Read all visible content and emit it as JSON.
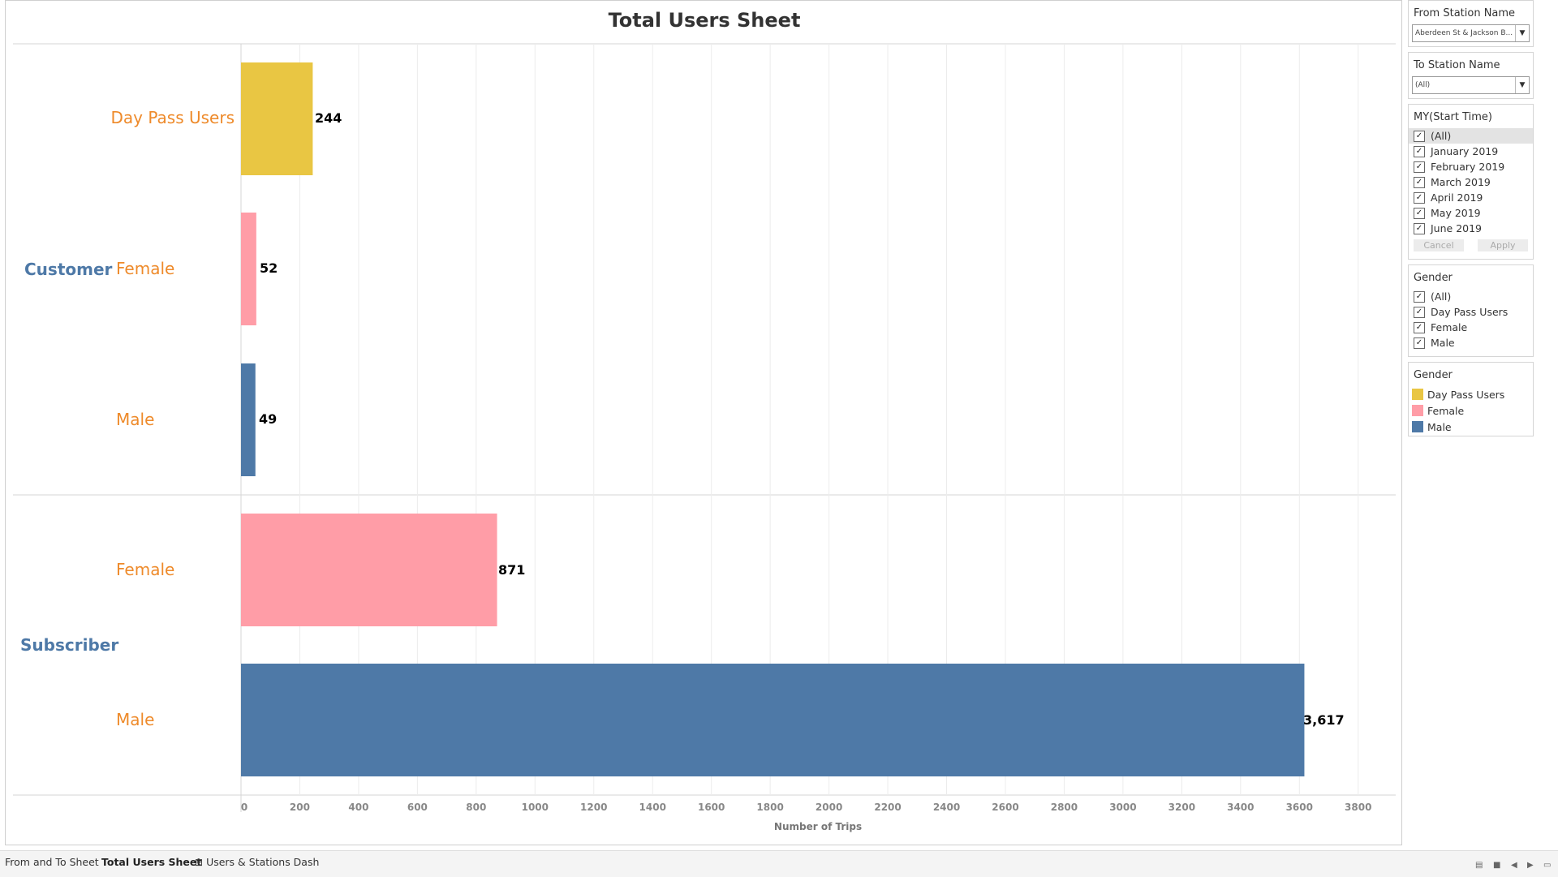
{
  "sheet": {
    "title": "Total Users Sheet"
  },
  "chart_data": {
    "type": "bar",
    "orientation": "horizontal",
    "title": "Total Users Sheet",
    "xlabel": "Number of Trips",
    "xlim": [
      0,
      3900
    ],
    "x_ticks": [
      "0",
      "200",
      "400",
      "600",
      "800",
      "1000",
      "1200",
      "1400",
      "1600",
      "1800",
      "2000",
      "2200",
      "2400",
      "2600",
      "2800",
      "3000",
      "3200",
      "3400",
      "3600",
      "3800"
    ],
    "groups": [
      {
        "name": "Customer",
        "bars": [
          {
            "category": "Day Pass Users",
            "value": 244,
            "label": "244",
            "color": "#e9c643"
          },
          {
            "category": "Female",
            "value": 52,
            "label": "52",
            "color": "#ff9da7"
          },
          {
            "category": "Male",
            "value": 49,
            "label": "49",
            "color": "#4e79a7"
          }
        ]
      },
      {
        "name": "Subscriber",
        "bars": [
          {
            "category": "Female",
            "value": 871,
            "label": "871",
            "color": "#ff9da7"
          },
          {
            "category": "Male",
            "value": 3617,
            "label": "3,617",
            "color": "#4e79a7"
          }
        ]
      }
    ],
    "grid": true
  },
  "filters": {
    "from_station": {
      "title": "From Station Name",
      "value": "Aberdeen St & Jackson B..."
    },
    "to_station": {
      "title": "To Station Name",
      "value": "(All)"
    },
    "month": {
      "title": "MY(Start Time)",
      "options": [
        "(All)",
        "January 2019",
        "February 2019",
        "March 2019",
        "April 2019",
        "May 2019",
        "June 2019"
      ],
      "cancel_label": "Cancel",
      "apply_label": "Apply"
    },
    "gender": {
      "title": "Gender",
      "options": [
        "(All)",
        "Day Pass Users",
        "Female",
        "Male"
      ]
    }
  },
  "legend": {
    "title": "Gender",
    "items": [
      {
        "label": "Day Pass Users",
        "color": "#e9c643"
      },
      {
        "label": "Female",
        "color": "#ff9da7"
      },
      {
        "label": "Male",
        "color": "#4e79a7"
      }
    ]
  },
  "tabs": {
    "items": [
      "From and To Sheet",
      "Total Users Sheet",
      "Users & Stations Dash"
    ],
    "active": "Total Users Sheet"
  }
}
